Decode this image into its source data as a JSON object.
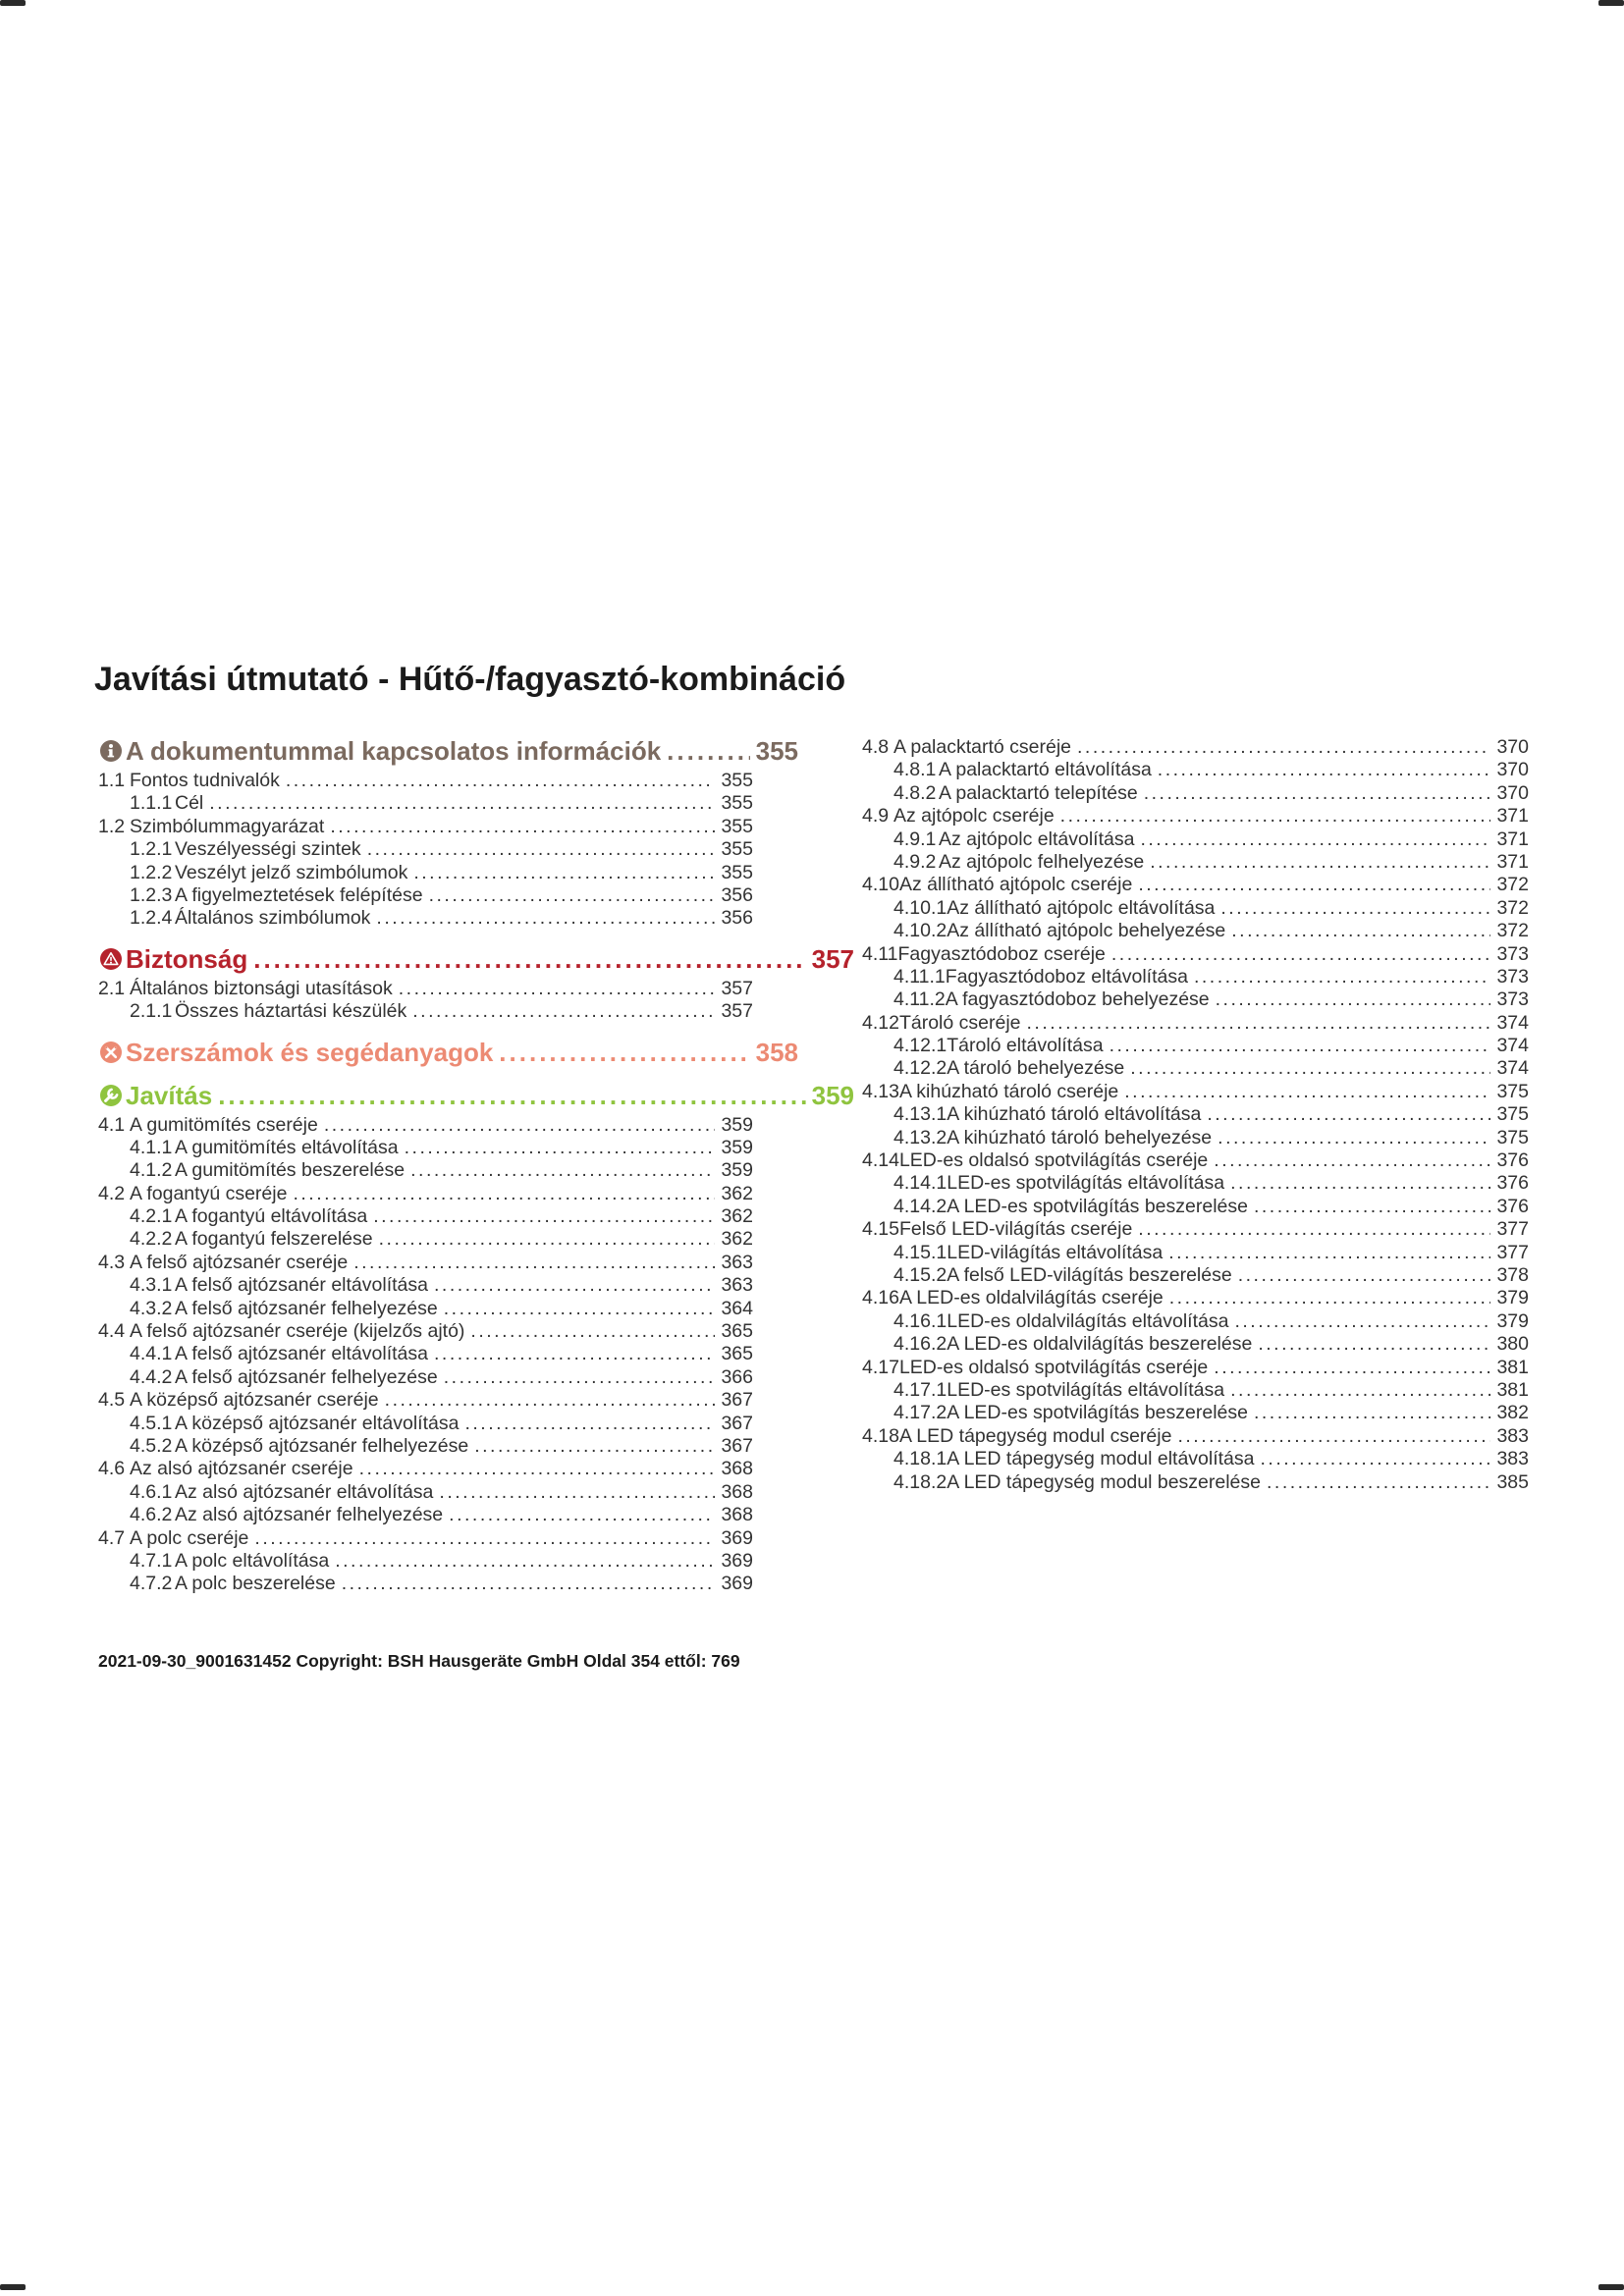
{
  "page": {
    "title": "Javítási útmutató - Hűtő-/fagyasztó-kombináció",
    "footer": "2021-09-30_9001631452 Copyright: BSH Hausgeräte GmbH Oldal 354 ettől: 769"
  },
  "colors": {
    "info": "#7b6a5f",
    "safety": "#b5222c",
    "tools": "#ec8a73",
    "repair": "#8fc43f",
    "body_text": "#333333"
  },
  "toc": {
    "left": [
      {
        "type": "section",
        "icon": "info-icon",
        "variant": "info",
        "label": "A dokumentummal kapcsolatos információk",
        "page": "355"
      },
      {
        "type": "l2",
        "num": "1.1",
        "label": "Fontos tudnivalók",
        "page": "355"
      },
      {
        "type": "l3",
        "num": "1.1.1",
        "label": "Cél",
        "page": "355"
      },
      {
        "type": "l2",
        "num": "1.2",
        "label": "Szimbólummagyarázat",
        "page": "355"
      },
      {
        "type": "l3",
        "num": "1.2.1",
        "label": "Veszélyességi szintek",
        "page": "355"
      },
      {
        "type": "l3",
        "num": "1.2.2",
        "label": "Veszélyt jelző szimbólumok",
        "page": "355"
      },
      {
        "type": "l3",
        "num": "1.2.3",
        "label": "A figyelmeztetések felépítése",
        "page": "356"
      },
      {
        "type": "l3",
        "num": "1.2.4",
        "label": "Általános szimbólumok",
        "page": "356"
      },
      {
        "type": "section",
        "icon": "warning-icon",
        "variant": "safety",
        "label": "Biztonság",
        "page": "357"
      },
      {
        "type": "l2",
        "num": "2.1",
        "label": "Általános biztonsági utasítások",
        "page": "357"
      },
      {
        "type": "l3",
        "num": "2.1.1",
        "label": "Összes háztartási készülék",
        "page": "357"
      },
      {
        "type": "section",
        "icon": "tools-icon",
        "variant": "tools",
        "label": "Szerszámok és segédanyagok",
        "page": "358"
      },
      {
        "type": "section",
        "icon": "wrench-icon",
        "variant": "repair",
        "label": "Javítás",
        "page": "359"
      },
      {
        "type": "l2",
        "num": "4.1",
        "label": "A gumitömítés cseréje",
        "page": "359"
      },
      {
        "type": "l3",
        "num": "4.1.1",
        "label": "A gumitömítés eltávolítása",
        "page": "359"
      },
      {
        "type": "l3",
        "num": "4.1.2",
        "label": "A gumitömítés beszerelése",
        "page": "359"
      },
      {
        "type": "l2",
        "num": "4.2",
        "label": "A fogantyú cseréje",
        "page": "362"
      },
      {
        "type": "l3",
        "num": "4.2.1",
        "label": "A fogantyú eltávolítása",
        "page": "362"
      },
      {
        "type": "l3",
        "num": "4.2.2",
        "label": "A fogantyú felszerelése",
        "page": "362"
      },
      {
        "type": "l2",
        "num": "4.3",
        "label": "A felső ajtózsanér cseréje",
        "page": "363"
      },
      {
        "type": "l3",
        "num": "4.3.1",
        "label": "A felső ajtózsanér eltávolítása",
        "page": "363"
      },
      {
        "type": "l3",
        "num": "4.3.2",
        "label": "A felső ajtózsanér felhelyezése",
        "page": "364"
      },
      {
        "type": "l2",
        "num": "4.4",
        "label": "A felső ajtózsanér cseréje (kijelzős ajtó)",
        "page": "365"
      },
      {
        "type": "l3",
        "num": "4.4.1",
        "label": "A felső ajtózsanér eltávolítása",
        "page": "365"
      },
      {
        "type": "l3",
        "num": "4.4.2",
        "label": "A felső ajtózsanér felhelyezése",
        "page": "366"
      },
      {
        "type": "l2",
        "num": "4.5",
        "label": "A középső ajtózsanér cseréje",
        "page": "367"
      },
      {
        "type": "l3",
        "num": "4.5.1",
        "label": "A középső ajtózsanér eltávolítása",
        "page": "367"
      },
      {
        "type": "l3",
        "num": "4.5.2",
        "label": "A középső ajtózsanér felhelyezése",
        "page": "367"
      },
      {
        "type": "l2",
        "num": "4.6",
        "label": "Az alsó ajtózsanér cseréje",
        "page": "368"
      },
      {
        "type": "l3",
        "num": "4.6.1",
        "label": "Az alsó ajtózsanér eltávolítása",
        "page": "368"
      },
      {
        "type": "l3",
        "num": "4.6.2",
        "label": "Az alsó ajtózsanér felhelyezése",
        "page": "368"
      },
      {
        "type": "l2",
        "num": "4.7",
        "label": "A polc cseréje",
        "page": "369"
      },
      {
        "type": "l3",
        "num": "4.7.1",
        "label": "A polc eltávolítása",
        "page": "369"
      },
      {
        "type": "l3",
        "num": "4.7.2",
        "label": "A polc beszerelése",
        "page": "369"
      }
    ],
    "right": [
      {
        "type": "l2",
        "num": "4.8",
        "label": "A palacktartó cseréje",
        "page": "370"
      },
      {
        "type": "l3",
        "num": "4.8.1",
        "label": "A palacktartó eltávolítása",
        "page": "370"
      },
      {
        "type": "l3",
        "num": "4.8.2",
        "label": "A palacktartó telepítése",
        "page": "370"
      },
      {
        "type": "l2",
        "num": "4.9",
        "label": "Az ajtópolc cseréje",
        "page": "371"
      },
      {
        "type": "l3",
        "num": "4.9.1",
        "label": "Az ajtópolc eltávolítása",
        "page": "371"
      },
      {
        "type": "l3",
        "num": "4.9.2",
        "label": "Az ajtópolc felhelyezése",
        "page": "371"
      },
      {
        "type": "l2",
        "num": "4.10",
        "label": "Az állítható ajtópolc cseréje",
        "page": "372"
      },
      {
        "type": "l3",
        "num": "4.10.1",
        "label": "Az állítható ajtópolc eltávolítása",
        "page": "372"
      },
      {
        "type": "l3",
        "num": "4.10.2",
        "label": "Az állítható ajtópolc behelyezése",
        "page": "372"
      },
      {
        "type": "l2",
        "num": "4.11",
        "label": "Fagyasztódoboz cseréje",
        "page": "373"
      },
      {
        "type": "l3",
        "num": "4.11.1",
        "label": "Fagyasztódoboz eltávolítása",
        "page": "373"
      },
      {
        "type": "l3",
        "num": "4.11.2",
        "label": "A fagyasztódoboz behelyezése",
        "page": "373"
      },
      {
        "type": "l2",
        "num": "4.12",
        "label": "Tároló cseréje",
        "page": "374"
      },
      {
        "type": "l3",
        "num": "4.12.1",
        "label": "Tároló eltávolítása",
        "page": "374"
      },
      {
        "type": "l3",
        "num": "4.12.2",
        "label": "A tároló behelyezése",
        "page": "374"
      },
      {
        "type": "l2",
        "num": "4.13",
        "label": "A kihúzható tároló cseréje",
        "page": "375"
      },
      {
        "type": "l3",
        "num": "4.13.1",
        "label": "A kihúzható tároló eltávolítása",
        "page": "375"
      },
      {
        "type": "l3",
        "num": "4.13.2",
        "label": "A kihúzható tároló behelyezése",
        "page": "375"
      },
      {
        "type": "l2",
        "num": "4.14",
        "label": "LED-es oldalsó spotvilágítás cseréje",
        "page": "376"
      },
      {
        "type": "l3",
        "num": "4.14.1",
        "label": "LED-es spotvilágítás eltávolítása",
        "page": "376"
      },
      {
        "type": "l3",
        "num": "4.14.2",
        "label": "A LED-es spotvilágítás beszerelése",
        "page": "376"
      },
      {
        "type": "l2",
        "num": "4.15",
        "label": "Felső LED-világítás cseréje",
        "page": "377"
      },
      {
        "type": "l3",
        "num": "4.15.1",
        "label": "LED-világítás eltávolítása",
        "page": "377"
      },
      {
        "type": "l3",
        "num": "4.15.2",
        "label": "A felső LED-világítás beszerelése",
        "page": "378"
      },
      {
        "type": "l2",
        "num": "4.16",
        "label": "A LED-es oldalvilágítás cseréje",
        "page": "379"
      },
      {
        "type": "l3",
        "num": "4.16.1",
        "label": "LED-es oldalvilágítás eltávolítása",
        "page": "379"
      },
      {
        "type": "l3",
        "num": "4.16.2",
        "label": "A LED-es oldalvilágítás beszerelése",
        "page": "380"
      },
      {
        "type": "l2",
        "num": "4.17",
        "label": "LED-es oldalsó spotvilágítás cseréje",
        "page": "381"
      },
      {
        "type": "l3",
        "num": "4.17.1",
        "label": "LED-es spotvilágítás eltávolítása",
        "page": "381"
      },
      {
        "type": "l3",
        "num": "4.17.2",
        "label": "A LED-es spotvilágítás beszerelése",
        "page": "382"
      },
      {
        "type": "l2",
        "num": "4.18",
        "label": "A LED tápegység modul cseréje",
        "page": "383"
      },
      {
        "type": "l3",
        "num": "4.18.1",
        "label": "A LED tápegység modul eltávolítása",
        "page": "383"
      },
      {
        "type": "l3",
        "num": "4.18.2",
        "label": "A LED tápegység modul beszerelése",
        "page": "385"
      }
    ]
  }
}
